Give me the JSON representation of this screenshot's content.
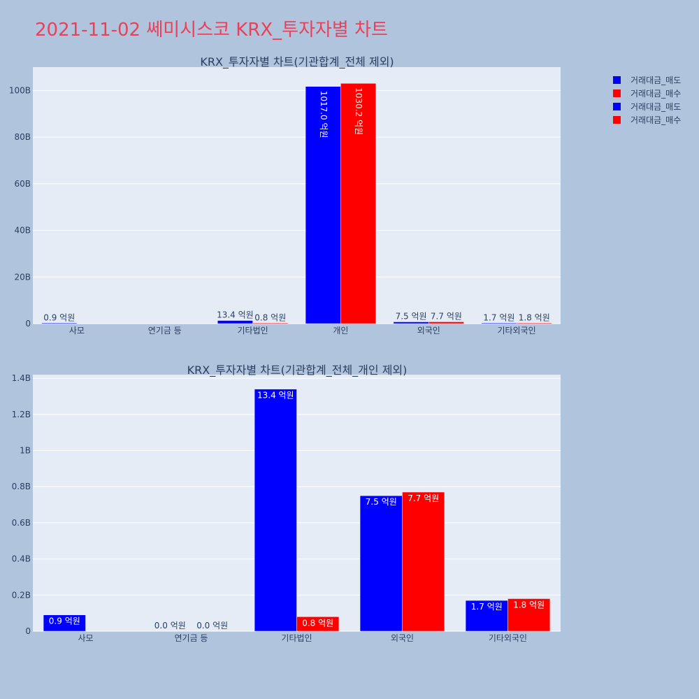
{
  "title": "2021-11-02 쎄미시스코 KRX_투자자별 차트",
  "legend": [
    {
      "label": "거래대금_매도",
      "color": "#0000ff"
    },
    {
      "label": "거래대금_매수",
      "color": "#ff0000"
    },
    {
      "label": "거래대금_매도",
      "color": "#0000ff"
    },
    {
      "label": "거래대금_매수",
      "color": "#ff0000"
    }
  ],
  "chart_data": [
    {
      "type": "bar",
      "title": "KRX_투자자별 차트(기관합계_전체 제외)",
      "categories": [
        "사모",
        "연기금 등",
        "기타법인",
        "개인",
        "외국인",
        "기타외국인"
      ],
      "ylim": [
        0,
        110000000000
      ],
      "yticks": [
        0,
        20000000000,
        40000000000,
        60000000000,
        80000000000,
        100000000000
      ],
      "ytick_labels": [
        "0",
        "20B",
        "40B",
        "60B",
        "80B",
        "100B"
      ],
      "series": [
        {
          "name": "거래대금_매도",
          "color": "#0000ff",
          "values": [
            90000000,
            null,
            1340000000,
            101700000000,
            750000000,
            170000000
          ],
          "labels": [
            "0.9 억원",
            "",
            "13.4 억원",
            "1017.0 억원",
            "7.5 억원",
            "1.7 억원"
          ]
        },
        {
          "name": "거래대금_매수",
          "color": "#ff0000",
          "values": [
            null,
            null,
            80000000,
            103020000000,
            770000000,
            180000000
          ],
          "labels": [
            "",
            "",
            "0.8 억원",
            "1030.2 억원",
            "7.7 억원",
            "1.8 억원"
          ]
        }
      ],
      "grid": true
    },
    {
      "type": "bar",
      "title": "KRX_투자자별 차트(기관합계_전체_개인 제외)",
      "categories": [
        "사모",
        "연기금 등",
        "기타법인",
        "외국인",
        "기타외국인"
      ],
      "ylim": [
        0,
        1420000000
      ],
      "yticks": [
        0,
        200000000,
        400000000,
        600000000,
        800000000,
        1000000000,
        1200000000,
        1400000000
      ],
      "ytick_labels": [
        "0",
        "0.2B",
        "0.4B",
        "0.6B",
        "0.8B",
        "1B",
        "1.2B",
        "1.4B"
      ],
      "series": [
        {
          "name": "거래대금_매도",
          "color": "#0000ff",
          "values": [
            90000000,
            0,
            1340000000,
            750000000,
            170000000
          ],
          "labels": [
            "0.9 억원",
            "0.0 억원",
            "13.4 억원",
            "7.5 억원",
            "1.7 억원"
          ]
        },
        {
          "name": "거래대금_매수",
          "color": "#ff0000",
          "values": [
            null,
            0,
            80000000,
            770000000,
            180000000
          ],
          "labels": [
            "",
            "0.0 억원",
            "0.8 억원",
            "7.7 억원",
            "1.8 억원"
          ]
        }
      ],
      "grid": true
    }
  ]
}
